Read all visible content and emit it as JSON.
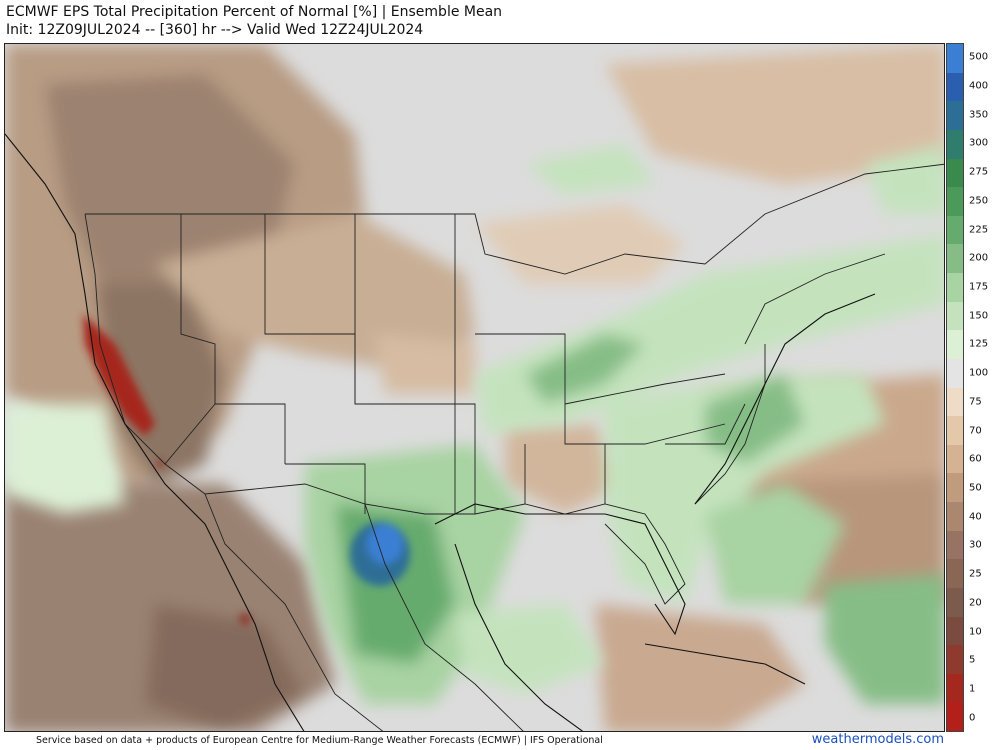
{
  "header": {
    "title_line1": "ECMWF EPS Total Precipitation Percent of Normal [%] | Ensemble Mean",
    "title_line2": "Init: 12Z09JUL2024 -- [360] hr --> Valid Wed 12Z24JUL2024"
  },
  "colorbar": {
    "labels": [
      "500",
      "400",
      "350",
      "300",
      "275",
      "250",
      "225",
      "200",
      "175",
      "150",
      "125",
      "100",
      "75",
      "70",
      "60",
      "50",
      "40",
      "30",
      "25",
      "20",
      "10",
      "5",
      "1",
      "0"
    ],
    "colors": [
      "#3b7fd4",
      "#2a5fb0",
      "#2d6e96",
      "#2f7d6d",
      "#3a8a4e",
      "#4c9a5a",
      "#66ab6e",
      "#86bd86",
      "#a8d3a2",
      "#c4e3bd",
      "#dcf0d6",
      "#e4e4e4",
      "#efdcc6",
      "#e3c8aa",
      "#d4b293",
      "#c19b7e",
      "#ab8770",
      "#977363",
      "#8a6655",
      "#7d5b4c",
      "#7b4b40",
      "#8e3a2e",
      "#a5281e",
      "#b3201a"
    ]
  },
  "footer": {
    "credit": "Service based on data + products of European Centre for Medium-Range Weather Forecasts (ECMWF) | IFS Operational",
    "site": "weathermodels.com"
  }
}
